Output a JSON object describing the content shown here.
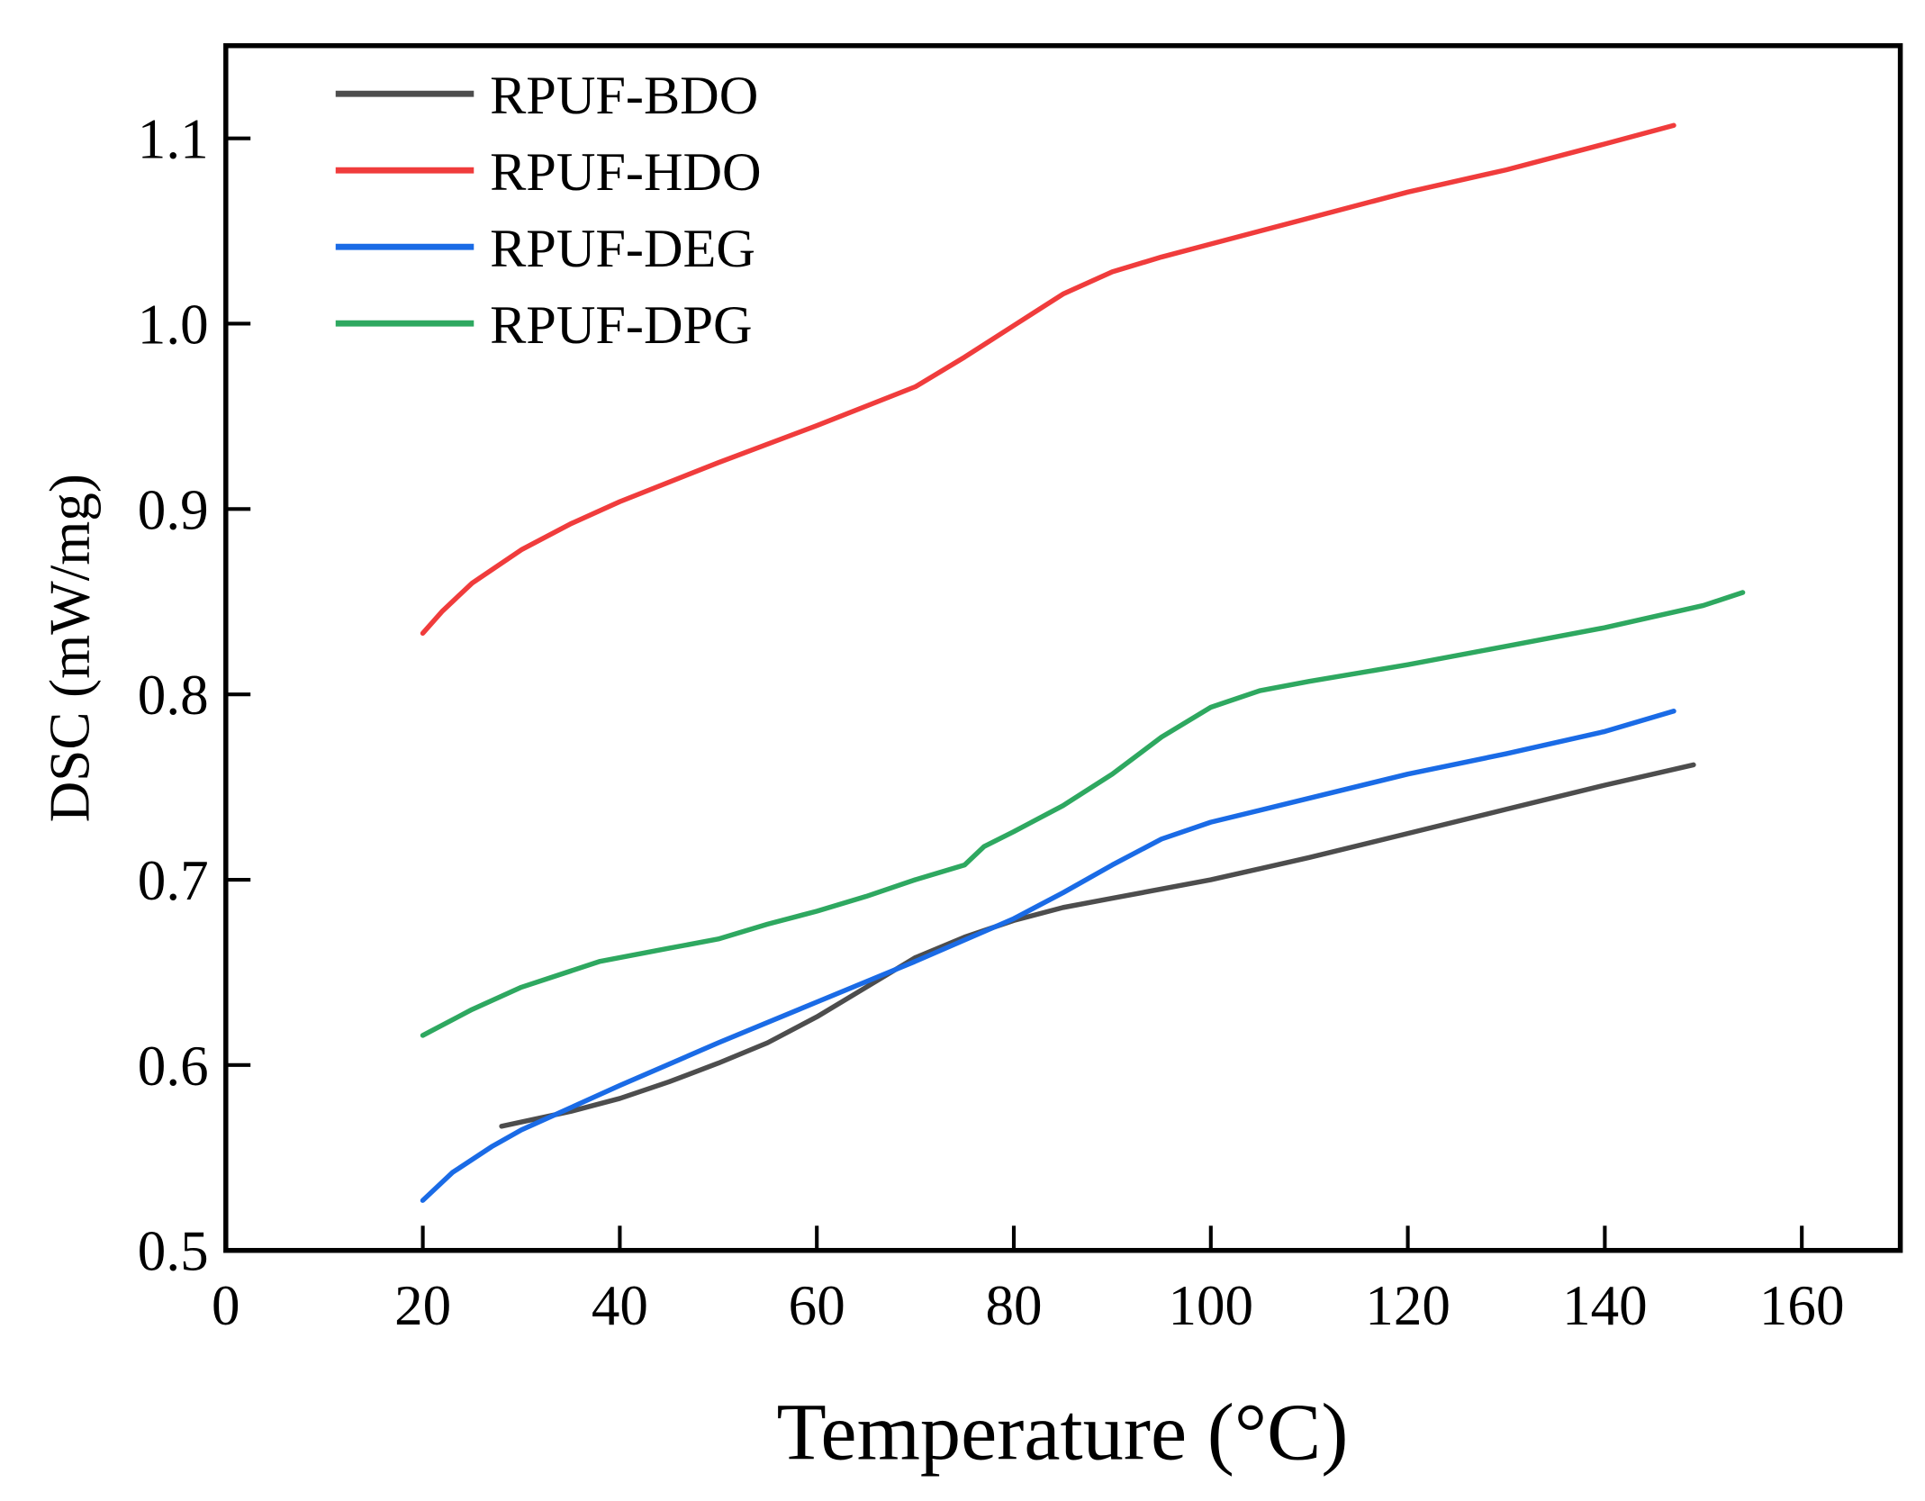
{
  "chart_data": {
    "type": "line",
    "title": "",
    "xlabel": "Temperature (°C)",
    "ylabel": "DSC (mW/mg)",
    "xlim": [
      0,
      170
    ],
    "ylim": [
      0.5,
      1.15
    ],
    "xticks": [
      "0",
      "20",
      "40",
      "60",
      "80",
      "100",
      "120",
      "140",
      "160"
    ],
    "yticks": [
      "0.5",
      "0.6",
      "0.7",
      "0.8",
      "0.9",
      "1.0",
      "1.1"
    ],
    "grid": false,
    "legend_position": "top-left",
    "series": [
      {
        "name": "RPUF-BDO",
        "color": "#4d4d4d",
        "points": [
          [
            28,
            0.567
          ],
          [
            35,
            0.575
          ],
          [
            40,
            0.582
          ],
          [
            45,
            0.591
          ],
          [
            50,
            0.601
          ],
          [
            55,
            0.612
          ],
          [
            60,
            0.626
          ],
          [
            65,
            0.642
          ],
          [
            70,
            0.658
          ],
          [
            75,
            0.669
          ],
          [
            80,
            0.678
          ],
          [
            85,
            0.685
          ],
          [
            90,
            0.69
          ],
          [
            100,
            0.7
          ],
          [
            110,
            0.712
          ],
          [
            120,
            0.725
          ],
          [
            130,
            0.738
          ],
          [
            140,
            0.751
          ],
          [
            149,
            0.762
          ]
        ]
      },
      {
        "name": "RPUF-HDO",
        "color": "#f03c3c",
        "points": [
          [
            20,
            0.833
          ],
          [
            22,
            0.845
          ],
          [
            25,
            0.86
          ],
          [
            30,
            0.878
          ],
          [
            35,
            0.892
          ],
          [
            40,
            0.904
          ],
          [
            50,
            0.925
          ],
          [
            60,
            0.945
          ],
          [
            70,
            0.966
          ],
          [
            75,
            0.982
          ],
          [
            80,
            0.999
          ],
          [
            85,
            1.016
          ],
          [
            90,
            1.028
          ],
          [
            95,
            1.036
          ],
          [
            100,
            1.043
          ],
          [
            110,
            1.057
          ],
          [
            120,
            1.071
          ],
          [
            130,
            1.083
          ],
          [
            140,
            1.097
          ],
          [
            147,
            1.107
          ]
        ]
      },
      {
        "name": "RPUF-DEG",
        "color": "#1a6be6",
        "points": [
          [
            20,
            0.527
          ],
          [
            23,
            0.542
          ],
          [
            27,
            0.556
          ],
          [
            30,
            0.565
          ],
          [
            35,
            0.577
          ],
          [
            40,
            0.589
          ],
          [
            50,
            0.612
          ],
          [
            60,
            0.634
          ],
          [
            70,
            0.656
          ],
          [
            80,
            0.679
          ],
          [
            85,
            0.693
          ],
          [
            90,
            0.708
          ],
          [
            95,
            0.722
          ],
          [
            100,
            0.731
          ],
          [
            110,
            0.744
          ],
          [
            120,
            0.757
          ],
          [
            130,
            0.768
          ],
          [
            140,
            0.78
          ],
          [
            147,
            0.791
          ]
        ]
      },
      {
        "name": "RPUF-DPG",
        "color": "#2ea860",
        "points": [
          [
            20,
            0.616
          ],
          [
            25,
            0.63
          ],
          [
            30,
            0.642
          ],
          [
            38,
            0.656
          ],
          [
            45,
            0.663
          ],
          [
            50,
            0.668
          ],
          [
            55,
            0.676
          ],
          [
            60,
            0.683
          ],
          [
            65,
            0.691
          ],
          [
            70,
            0.7
          ],
          [
            75,
            0.708
          ],
          [
            77,
            0.718
          ],
          [
            80,
            0.726
          ],
          [
            85,
            0.74
          ],
          [
            90,
            0.757
          ],
          [
            95,
            0.777
          ],
          [
            100,
            0.793
          ],
          [
            105,
            0.802
          ],
          [
            110,
            0.807
          ],
          [
            120,
            0.816
          ],
          [
            130,
            0.826
          ],
          [
            140,
            0.836
          ],
          [
            150,
            0.848
          ],
          [
            154,
            0.855
          ]
        ]
      }
    ]
  }
}
